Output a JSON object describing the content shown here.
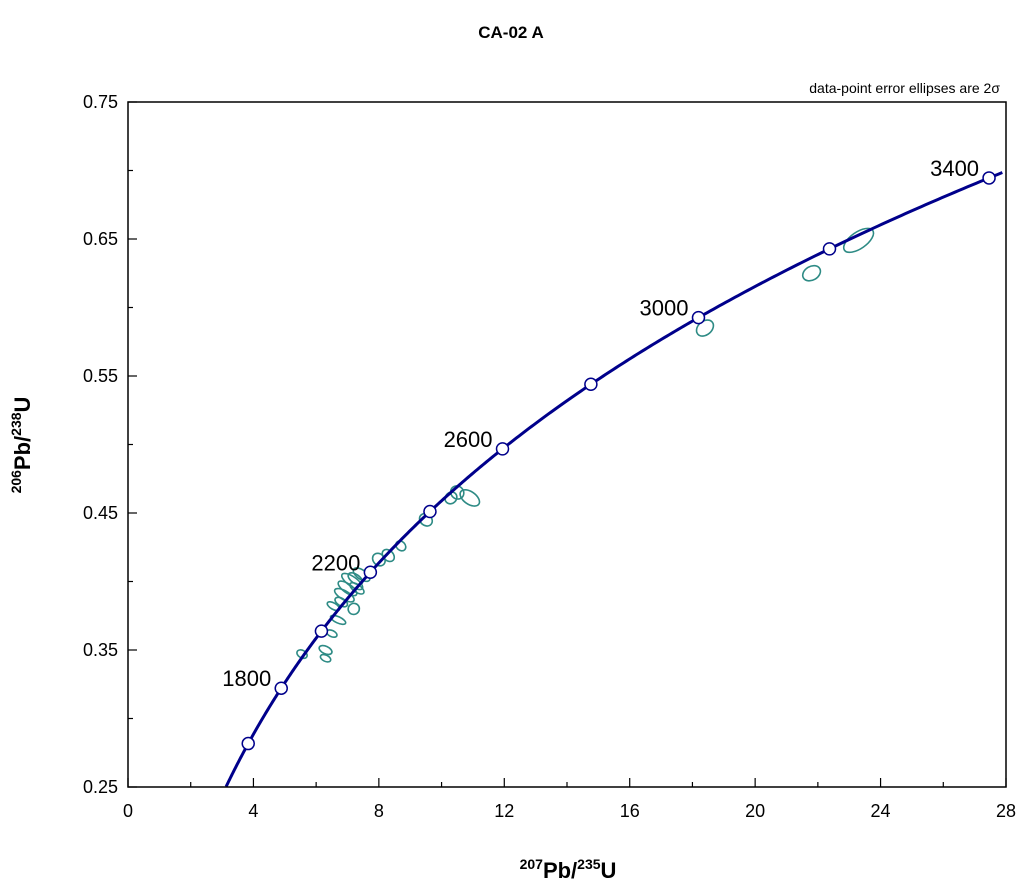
{
  "chart_data": {
    "type": "scatter",
    "title": "CA-02 A",
    "annotation": "data-point error ellipses are 2σ",
    "xlabel": {
      "sup1": "207",
      "main1": "Pb/",
      "sup2": "235",
      "main2": "U"
    },
    "ylabel": {
      "sup1": "206",
      "main1": "Pb/",
      "sup2": "238",
      "main2": "U"
    },
    "xlim": [
      0,
      28
    ],
    "ylim": [
      0.25,
      0.75
    ],
    "x_ticks": [
      0,
      4,
      8,
      12,
      16,
      20,
      24,
      28
    ],
    "y_ticks": [
      0.25,
      0.35,
      0.45,
      0.55,
      0.65,
      0.75
    ],
    "x_tick_labels": [
      "0",
      "4",
      "8",
      "12",
      "16",
      "20",
      "24",
      "28"
    ],
    "y_tick_labels": [
      "0.25",
      "0.35",
      "0.45",
      "0.55",
      "0.65",
      "0.75"
    ],
    "concordia": {
      "line_color": "#00008b",
      "marker_ages_ma": [
        1600,
        1800,
        2000,
        2200,
        2400,
        2600,
        2800,
        3000,
        3200,
        3400
      ],
      "labeled_ages_ma": [
        "1800",
        "2200",
        "2600",
        "3000",
        "3400"
      ]
    },
    "ellipse_color": "#2e8b85",
    "ellipses": [
      {
        "x": 5.55,
        "y": 0.347,
        "rx": 0.12,
        "ry": 0.004,
        "angle": 60
      },
      {
        "x": 6.3,
        "y": 0.35,
        "rx": 0.12,
        "ry": 0.005,
        "angle": 65
      },
      {
        "x": 6.3,
        "y": 0.344,
        "rx": 0.1,
        "ry": 0.004,
        "angle": 65
      },
      {
        "x": 6.5,
        "y": 0.362,
        "rx": 0.1,
        "ry": 0.004,
        "angle": 65
      },
      {
        "x": 6.55,
        "y": 0.382,
        "rx": 0.1,
        "ry": 0.005,
        "angle": 60
      },
      {
        "x": 6.7,
        "y": 0.372,
        "rx": 0.1,
        "ry": 0.006,
        "angle": 65
      },
      {
        "x": 6.8,
        "y": 0.385,
        "rx": 0.12,
        "ry": 0.005,
        "angle": 60
      },
      {
        "x": 6.9,
        "y": 0.39,
        "rx": 0.14,
        "ry": 0.008,
        "angle": 60
      },
      {
        "x": 7.0,
        "y": 0.395,
        "rx": 0.14,
        "ry": 0.008,
        "angle": 55
      },
      {
        "x": 7.15,
        "y": 0.4,
        "rx": 0.15,
        "ry": 0.009,
        "angle": 55
      },
      {
        "x": 7.25,
        "y": 0.402,
        "rx": 0.14,
        "ry": 0.006,
        "angle": 55
      },
      {
        "x": 7.3,
        "y": 0.395,
        "rx": 0.12,
        "ry": 0.006,
        "angle": 55
      },
      {
        "x": 7.45,
        "y": 0.405,
        "rx": 0.15,
        "ry": 0.007,
        "angle": 55
      },
      {
        "x": 7.2,
        "y": 0.38,
        "rx": 0.18,
        "ry": 0.004,
        "angle": 30
      },
      {
        "x": 8.0,
        "y": 0.416,
        "rx": 0.18,
        "ry": 0.005,
        "angle": 45
      },
      {
        "x": 8.3,
        "y": 0.419,
        "rx": 0.16,
        "ry": 0.005,
        "angle": 45
      },
      {
        "x": 8.7,
        "y": 0.426,
        "rx": 0.14,
        "ry": 0.004,
        "angle": 45
      },
      {
        "x": 9.5,
        "y": 0.445,
        "rx": 0.18,
        "ry": 0.005,
        "angle": 50
      },
      {
        "x": 10.3,
        "y": 0.461,
        "rx": 0.2,
        "ry": 0.004,
        "angle": 45
      },
      {
        "x": 10.5,
        "y": 0.465,
        "rx": 0.2,
        "ry": 0.005,
        "angle": 45
      },
      {
        "x": 10.9,
        "y": 0.461,
        "rx": 0.2,
        "ry": 0.008,
        "angle": 55
      },
      {
        "x": 18.4,
        "y": 0.585,
        "rx": 0.3,
        "ry": 0.005,
        "angle": 40
      },
      {
        "x": 21.8,
        "y": 0.625,
        "rx": 0.3,
        "ry": 0.005,
        "angle": 30
      },
      {
        "x": 23.3,
        "y": 0.649,
        "rx": 0.55,
        "ry": 0.006,
        "angle": 35
      }
    ]
  }
}
